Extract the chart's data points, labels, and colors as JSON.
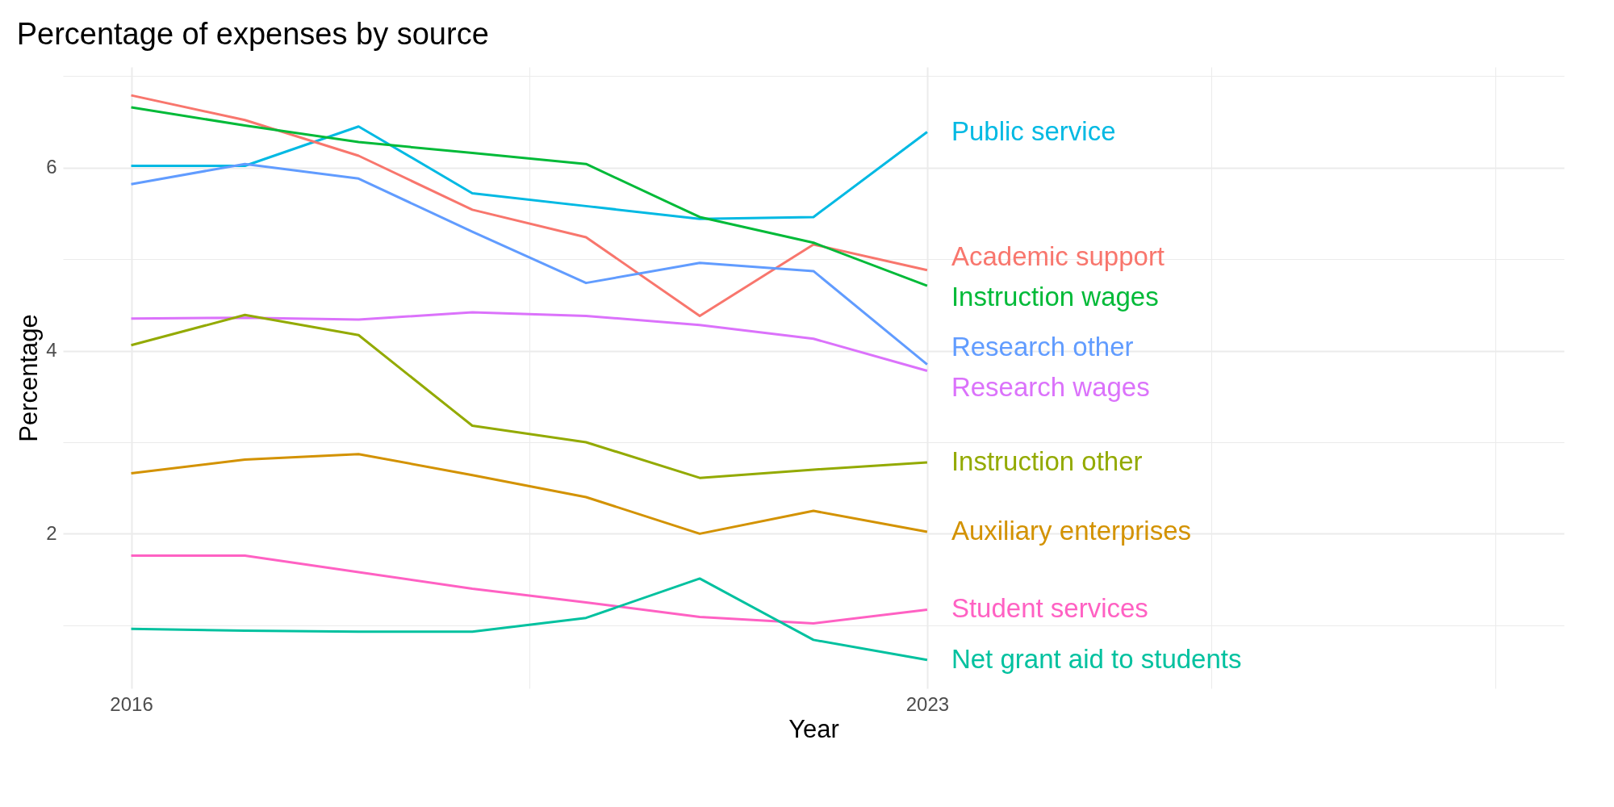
{
  "chart_data": {
    "type": "line",
    "title": "Percentage of expenses by source",
    "xlabel": "Year",
    "ylabel": "Percentage",
    "x": [
      2016,
      2017,
      2018,
      2019,
      2020,
      2021,
      2022,
      2023
    ],
    "xlim": [
      2015.4,
      2028.6
    ],
    "xticks": [
      2016,
      {
        "value": 2019.5,
        "label": null
      },
      2023,
      {
        "value": 2025.5,
        "label": null
      },
      {
        "value": 2028,
        "label": null
      }
    ],
    "ylim": [
      0.31,
      7.1
    ],
    "yticks": [
      {
        "value": 1,
        "label": null
      },
      2,
      {
        "value": 3,
        "label": null
      },
      4,
      {
        "value": 5,
        "label": null
      },
      6,
      {
        "value": 7,
        "label": null
      }
    ],
    "grid": true,
    "legend": false,
    "line_style": "solid",
    "marker": "none",
    "series": [
      {
        "name": "Public service",
        "color": "#00b9e3",
        "values": [
          6.02,
          6.02,
          6.45,
          5.72,
          5.58,
          5.44,
          5.46,
          6.39
        ]
      },
      {
        "name": "Academic support",
        "color": "#f8766d",
        "values": [
          6.79,
          6.52,
          6.13,
          5.54,
          5.24,
          4.38,
          5.16,
          4.88
        ]
      },
      {
        "name": "Instruction wages",
        "color": "#00ba38",
        "values": [
          6.66,
          6.46,
          6.28,
          6.16,
          6.04,
          5.46,
          5.18,
          4.71
        ]
      },
      {
        "name": "Research other",
        "color": "#619cff",
        "values": [
          5.82,
          6.04,
          5.88,
          5.3,
          4.74,
          4.96,
          4.87,
          3.85
        ]
      },
      {
        "name": "Research wages",
        "color": "#db72fb",
        "values": [
          4.35,
          4.36,
          4.34,
          4.42,
          4.38,
          4.28,
          4.13,
          3.78
        ]
      },
      {
        "name": "Instruction other",
        "color": "#93aa00",
        "values": [
          4.06,
          4.39,
          4.17,
          3.18,
          3.0,
          2.61,
          2.7,
          2.78
        ]
      },
      {
        "name": "Auxiliary enterprises",
        "color": "#d39200",
        "values": [
          2.66,
          2.81,
          2.87,
          2.64,
          2.4,
          2.0,
          2.25,
          2.02
        ]
      },
      {
        "name": "Student services",
        "color": "#ff61c3",
        "values": [
          1.76,
          1.76,
          1.58,
          1.4,
          1.25,
          1.09,
          1.02,
          1.17
        ]
      },
      {
        "name": "Net grant aid to students",
        "color": "#00c19f",
        "values": [
          0.96,
          0.94,
          0.93,
          0.93,
          1.08,
          1.51,
          0.84,
          0.62
        ]
      }
    ]
  }
}
